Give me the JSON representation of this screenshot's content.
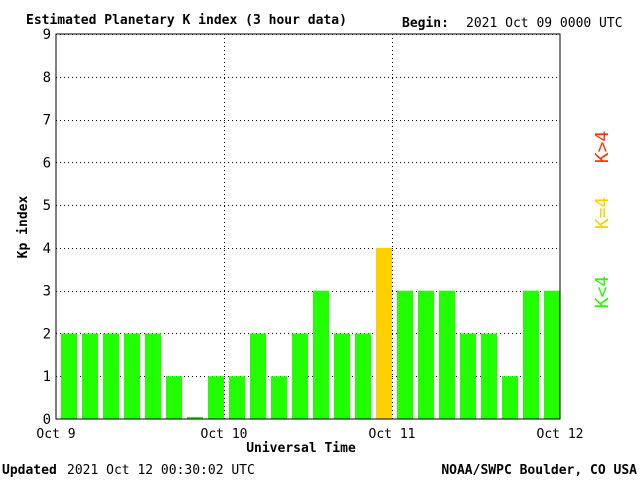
{
  "header": {
    "title": "Estimated Planetary K index (3 hour data)",
    "begin_label": "Begin:",
    "begin_value": "2021 Oct 09 0000 UTC"
  },
  "footer": {
    "updated_label": "Updated",
    "updated_value": "2021 Oct 12 00:30:02 UTC",
    "source": "NOAA/SWPC Boulder, CO USA"
  },
  "legend": {
    "high": "K>4",
    "mid": "K=4",
    "low": "K<4"
  },
  "colors": {
    "low": "#22ff00",
    "mid": "#ffd000",
    "high": "#ff3300",
    "grid": "#000000"
  },
  "chart_data": {
    "type": "bar",
    "title": "Estimated Planetary K index (3 hour data)",
    "xlabel": "Universal Time",
    "ylabel": "Kp index",
    "ylim": [
      0,
      9
    ],
    "yticks": [
      0,
      1,
      2,
      3,
      4,
      5,
      6,
      7,
      8,
      9
    ],
    "xticks": [
      "Oct 9",
      "Oct 10",
      "Oct 11",
      "Oct 12"
    ],
    "interval_hours": 3,
    "grid": true,
    "values": [
      2,
      2,
      2,
      2,
      2,
      1,
      0.05,
      1,
      1,
      2,
      1,
      2,
      3,
      2,
      2,
      4,
      3,
      3,
      3,
      2,
      2,
      1,
      3,
      3
    ]
  }
}
